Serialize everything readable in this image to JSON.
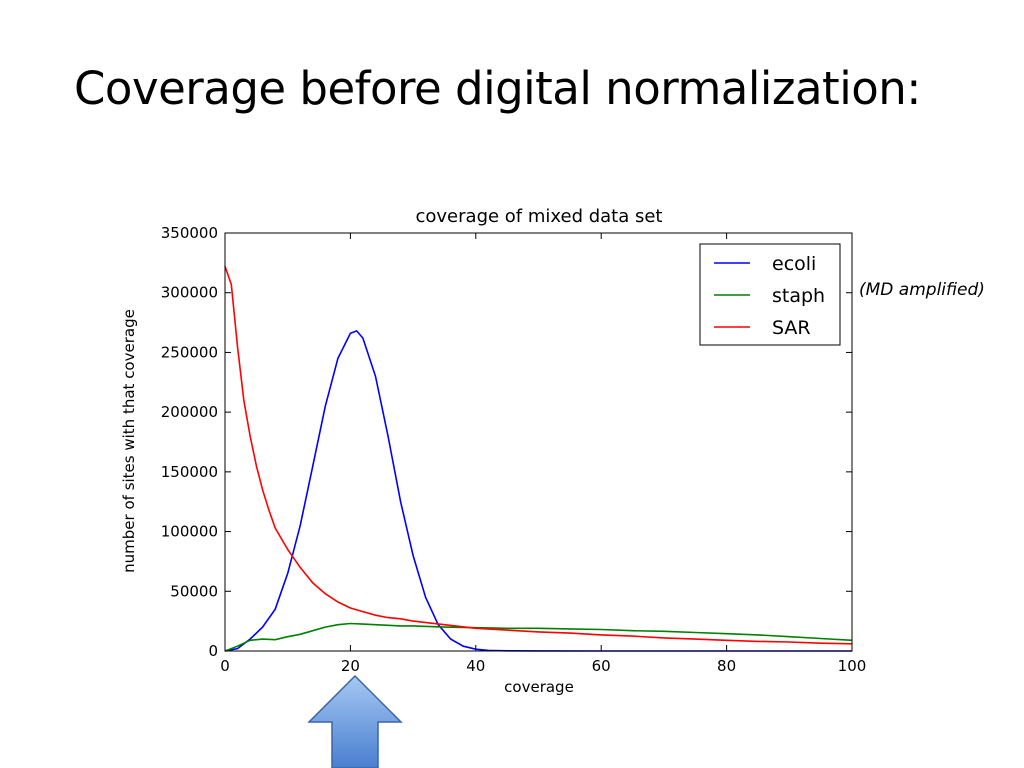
{
  "slide": {
    "title": "Coverage before digital normalization:",
    "side_note": "(MD amplified)"
  },
  "colors": {
    "ecoli": "#0000ff",
    "staph": "#008000",
    "SAR": "#ff0000",
    "arrow_top": "#a6c8f2",
    "arrow_bottom": "#4a7fd0",
    "arrow_border": "#3a65a8"
  },
  "chart_data": {
    "type": "line",
    "title": "coverage of mixed data set",
    "xlabel": "coverage",
    "ylabel": "number of sites with that coverage",
    "xlim": [
      0,
      100
    ],
    "ylim": [
      0,
      350000
    ],
    "xticks": [
      "0",
      "20",
      "40",
      "60",
      "80",
      "100"
    ],
    "yticks": [
      "0",
      "50000",
      "100000",
      "150000",
      "200000",
      "250000",
      "300000",
      "350000"
    ],
    "grid": false,
    "legend_position": "top-right",
    "series": [
      {
        "name": "ecoli",
        "x": [
          0,
          2,
          4,
          6,
          8,
          10,
          12,
          14,
          16,
          18,
          20,
          21,
          22,
          24,
          26,
          28,
          30,
          32,
          34,
          36,
          38,
          40,
          42,
          45,
          50,
          60,
          70,
          80,
          90,
          100
        ],
        "y": [
          0,
          2000,
          10000,
          20000,
          35000,
          65000,
          105000,
          155000,
          205000,
          245000,
          266000,
          268000,
          262000,
          230000,
          180000,
          125000,
          80000,
          45000,
          22000,
          10000,
          4000,
          1500,
          500,
          200,
          100,
          0,
          0,
          0,
          0,
          0
        ]
      },
      {
        "name": "staph",
        "x": [
          0,
          2,
          4,
          6,
          8,
          10,
          12,
          14,
          16,
          18,
          20,
          22,
          24,
          26,
          28,
          30,
          35,
          40,
          45,
          50,
          55,
          60,
          65,
          70,
          75,
          80,
          85,
          90,
          95,
          100
        ],
        "y": [
          0,
          4000,
          9000,
          10000,
          9500,
          12000,
          14000,
          17000,
          20000,
          22000,
          23000,
          22500,
          22000,
          21500,
          21000,
          21000,
          20000,
          19500,
          19000,
          19000,
          18500,
          18000,
          17000,
          16500,
          15500,
          14500,
          13500,
          12000,
          10500,
          9000
        ]
      },
      {
        "name": "SAR",
        "x": [
          0,
          1,
          2,
          3,
          4,
          5,
          6,
          7,
          8,
          10,
          12,
          14,
          16,
          18,
          20,
          22,
          24,
          26,
          28,
          30,
          35,
          40,
          45,
          50,
          55,
          60,
          65,
          70,
          75,
          80,
          85,
          90,
          95,
          100
        ],
        "y": [
          322000,
          307000,
          255000,
          210000,
          180000,
          155000,
          135000,
          118000,
          103000,
          85000,
          70000,
          57000,
          48000,
          41000,
          36000,
          33000,
          30000,
          28000,
          27000,
          25000,
          22000,
          19000,
          17500,
          16000,
          15000,
          13500,
          12500,
          11000,
          10000,
          9000,
          8000,
          7500,
          6500,
          6000
        ]
      }
    ]
  }
}
